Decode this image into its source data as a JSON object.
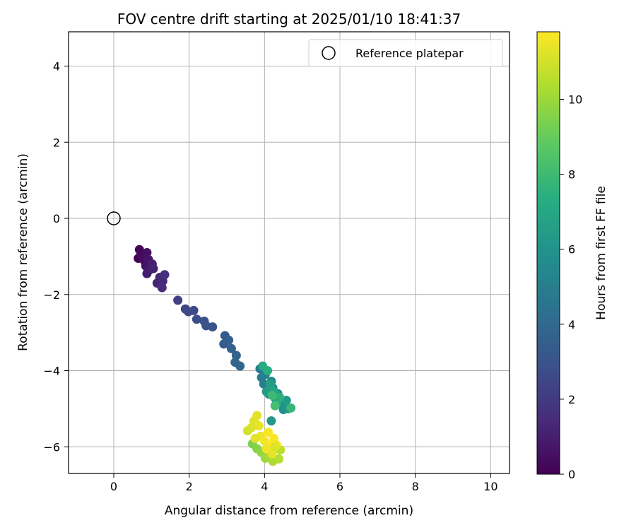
{
  "chart_data": {
    "type": "scatter",
    "title": "FOV centre drift starting at 2025/01/10 18:41:37",
    "xlabel": "Angular distance from reference (arcmin)",
    "ylabel": "Rotation from reference (arcmin)",
    "xlim": [
      -1.2,
      10.5
    ],
    "ylim": [
      -6.7,
      4.9
    ],
    "xticks": [
      0,
      2,
      4,
      6,
      8,
      10
    ],
    "yticks": [
      -6,
      -4,
      -2,
      0,
      2,
      4
    ],
    "grid": true,
    "legend": {
      "placement": "top-right",
      "entries": [
        "Reference platepar"
      ]
    },
    "reference_point": {
      "x": 0,
      "y": 0,
      "label": "Reference platepar"
    },
    "colorbar": {
      "label": "Hours from first FF file",
      "ticks": [
        0,
        2,
        4,
        6,
        8,
        10
      ],
      "range": [
        0,
        11.8
      ],
      "colormap": "viridis"
    },
    "points": [
      {
        "x": 0.65,
        "y": -1.05,
        "c": 0.0
      },
      {
        "x": 0.68,
        "y": -0.82,
        "c": 0.1
      },
      {
        "x": 0.72,
        "y": -0.95,
        "c": 0.2
      },
      {
        "x": 0.78,
        "y": -1.02,
        "c": 0.3
      },
      {
        "x": 0.82,
        "y": -1.12,
        "c": 0.4
      },
      {
        "x": 0.88,
        "y": -0.9,
        "c": 0.5
      },
      {
        "x": 0.85,
        "y": -1.25,
        "c": 0.6
      },
      {
        "x": 0.92,
        "y": -1.08,
        "c": 0.7
      },
      {
        "x": 0.95,
        "y": -1.35,
        "c": 0.8
      },
      {
        "x": 0.88,
        "y": -1.45,
        "c": 0.9
      },
      {
        "x": 1.02,
        "y": -1.2,
        "c": 1.0
      },
      {
        "x": 1.05,
        "y": -1.32,
        "c": 1.1
      },
      {
        "x": 1.15,
        "y": -1.7,
        "c": 1.2
      },
      {
        "x": 1.22,
        "y": -1.55,
        "c": 1.3
      },
      {
        "x": 1.3,
        "y": -1.65,
        "c": 1.4
      },
      {
        "x": 1.28,
        "y": -1.82,
        "c": 1.5
      },
      {
        "x": 1.35,
        "y": -1.48,
        "c": 1.6
      },
      {
        "x": 1.7,
        "y": -2.15,
        "c": 2.2
      },
      {
        "x": 1.9,
        "y": -2.38,
        "c": 2.4
      },
      {
        "x": 1.98,
        "y": -2.45,
        "c": 2.5
      },
      {
        "x": 2.12,
        "y": -2.42,
        "c": 2.6
      },
      {
        "x": 2.2,
        "y": -2.65,
        "c": 2.8
      },
      {
        "x": 2.4,
        "y": -2.7,
        "c": 2.9
      },
      {
        "x": 2.45,
        "y": -2.82,
        "c": 3.0
      },
      {
        "x": 2.62,
        "y": -2.85,
        "c": 3.1
      },
      {
        "x": 2.95,
        "y": -3.08,
        "c": 3.3
      },
      {
        "x": 2.92,
        "y": -3.3,
        "c": 3.4
      },
      {
        "x": 3.05,
        "y": -3.2,
        "c": 3.5
      },
      {
        "x": 3.12,
        "y": -3.42,
        "c": 3.6
      },
      {
        "x": 3.25,
        "y": -3.6,
        "c": 3.7
      },
      {
        "x": 3.22,
        "y": -3.78,
        "c": 3.8
      },
      {
        "x": 3.35,
        "y": -3.88,
        "c": 3.9
      },
      {
        "x": 3.88,
        "y": -3.95,
        "c": 4.8
      },
      {
        "x": 3.92,
        "y": -4.18,
        "c": 4.9
      },
      {
        "x": 3.98,
        "y": -4.35,
        "c": 5.0
      },
      {
        "x": 4.02,
        "y": -4.1,
        "c": 5.1
      },
      {
        "x": 4.08,
        "y": -4.5,
        "c": 5.2
      },
      {
        "x": 4.12,
        "y": -4.62,
        "c": 5.3
      },
      {
        "x": 4.18,
        "y": -4.28,
        "c": 5.4
      },
      {
        "x": 4.22,
        "y": -4.45,
        "c": 5.5
      },
      {
        "x": 4.28,
        "y": -4.72,
        "c": 5.6
      },
      {
        "x": 4.35,
        "y": -4.6,
        "c": 5.7
      },
      {
        "x": 4.42,
        "y": -4.85,
        "c": 5.8
      },
      {
        "x": 4.5,
        "y": -5.02,
        "c": 5.9
      },
      {
        "x": 4.55,
        "y": -4.9,
        "c": 6.0
      },
      {
        "x": 4.62,
        "y": -5.0,
        "c": 6.1
      },
      {
        "x": 4.58,
        "y": -4.78,
        "c": 6.3
      },
      {
        "x": 4.05,
        "y": -4.55,
        "c": 6.5
      },
      {
        "x": 4.15,
        "y": -4.35,
        "c": 6.6
      },
      {
        "x": 4.25,
        "y": -4.55,
        "c": 6.8
      },
      {
        "x": 4.32,
        "y": -4.85,
        "c": 7.0
      },
      {
        "x": 3.95,
        "y": -3.88,
        "c": 7.1
      },
      {
        "x": 4.08,
        "y": -4.0,
        "c": 7.3
      },
      {
        "x": 4.4,
        "y": -4.7,
        "c": 7.5
      },
      {
        "x": 4.7,
        "y": -4.98,
        "c": 7.8
      },
      {
        "x": 4.2,
        "y": -4.65,
        "c": 8.0
      },
      {
        "x": 4.28,
        "y": -4.92,
        "c": 8.2
      },
      {
        "x": 4.18,
        "y": -5.32,
        "c": 6.2
      },
      {
        "x": 3.68,
        "y": -5.92,
        "c": 9.4
      },
      {
        "x": 3.8,
        "y": -6.05,
        "c": 9.6
      },
      {
        "x": 3.92,
        "y": -6.15,
        "c": 9.8
      },
      {
        "x": 4.02,
        "y": -6.3,
        "c": 10.0
      },
      {
        "x": 4.12,
        "y": -6.2,
        "c": 10.2
      },
      {
        "x": 4.22,
        "y": -6.38,
        "c": 10.3
      },
      {
        "x": 4.3,
        "y": -6.05,
        "c": 10.4
      },
      {
        "x": 4.38,
        "y": -6.32,
        "c": 10.5
      },
      {
        "x": 4.42,
        "y": -6.08,
        "c": 10.6
      },
      {
        "x": 3.55,
        "y": -5.58,
        "c": 11.0
      },
      {
        "x": 3.65,
        "y": -5.5,
        "c": 11.1
      },
      {
        "x": 3.72,
        "y": -5.32,
        "c": 11.2
      },
      {
        "x": 3.8,
        "y": -5.18,
        "c": 11.3
      },
      {
        "x": 3.85,
        "y": -5.45,
        "c": 11.4
      },
      {
        "x": 3.9,
        "y": -5.72,
        "c": 11.5
      },
      {
        "x": 4.0,
        "y": -5.85,
        "c": 11.6
      },
      {
        "x": 4.1,
        "y": -5.62,
        "c": 11.7
      },
      {
        "x": 4.18,
        "y": -5.95,
        "c": 11.8
      },
      {
        "x": 4.25,
        "y": -5.78,
        "c": 11.7
      },
      {
        "x": 4.32,
        "y": -5.95,
        "c": 11.6
      },
      {
        "x": 4.05,
        "y": -6.05,
        "c": 11.5
      },
      {
        "x": 4.2,
        "y": -6.18,
        "c": 11.4
      },
      {
        "x": 3.75,
        "y": -5.78,
        "c": 11.3
      },
      {
        "x": 4.28,
        "y": -6.0,
        "c": 11.2
      }
    ]
  }
}
